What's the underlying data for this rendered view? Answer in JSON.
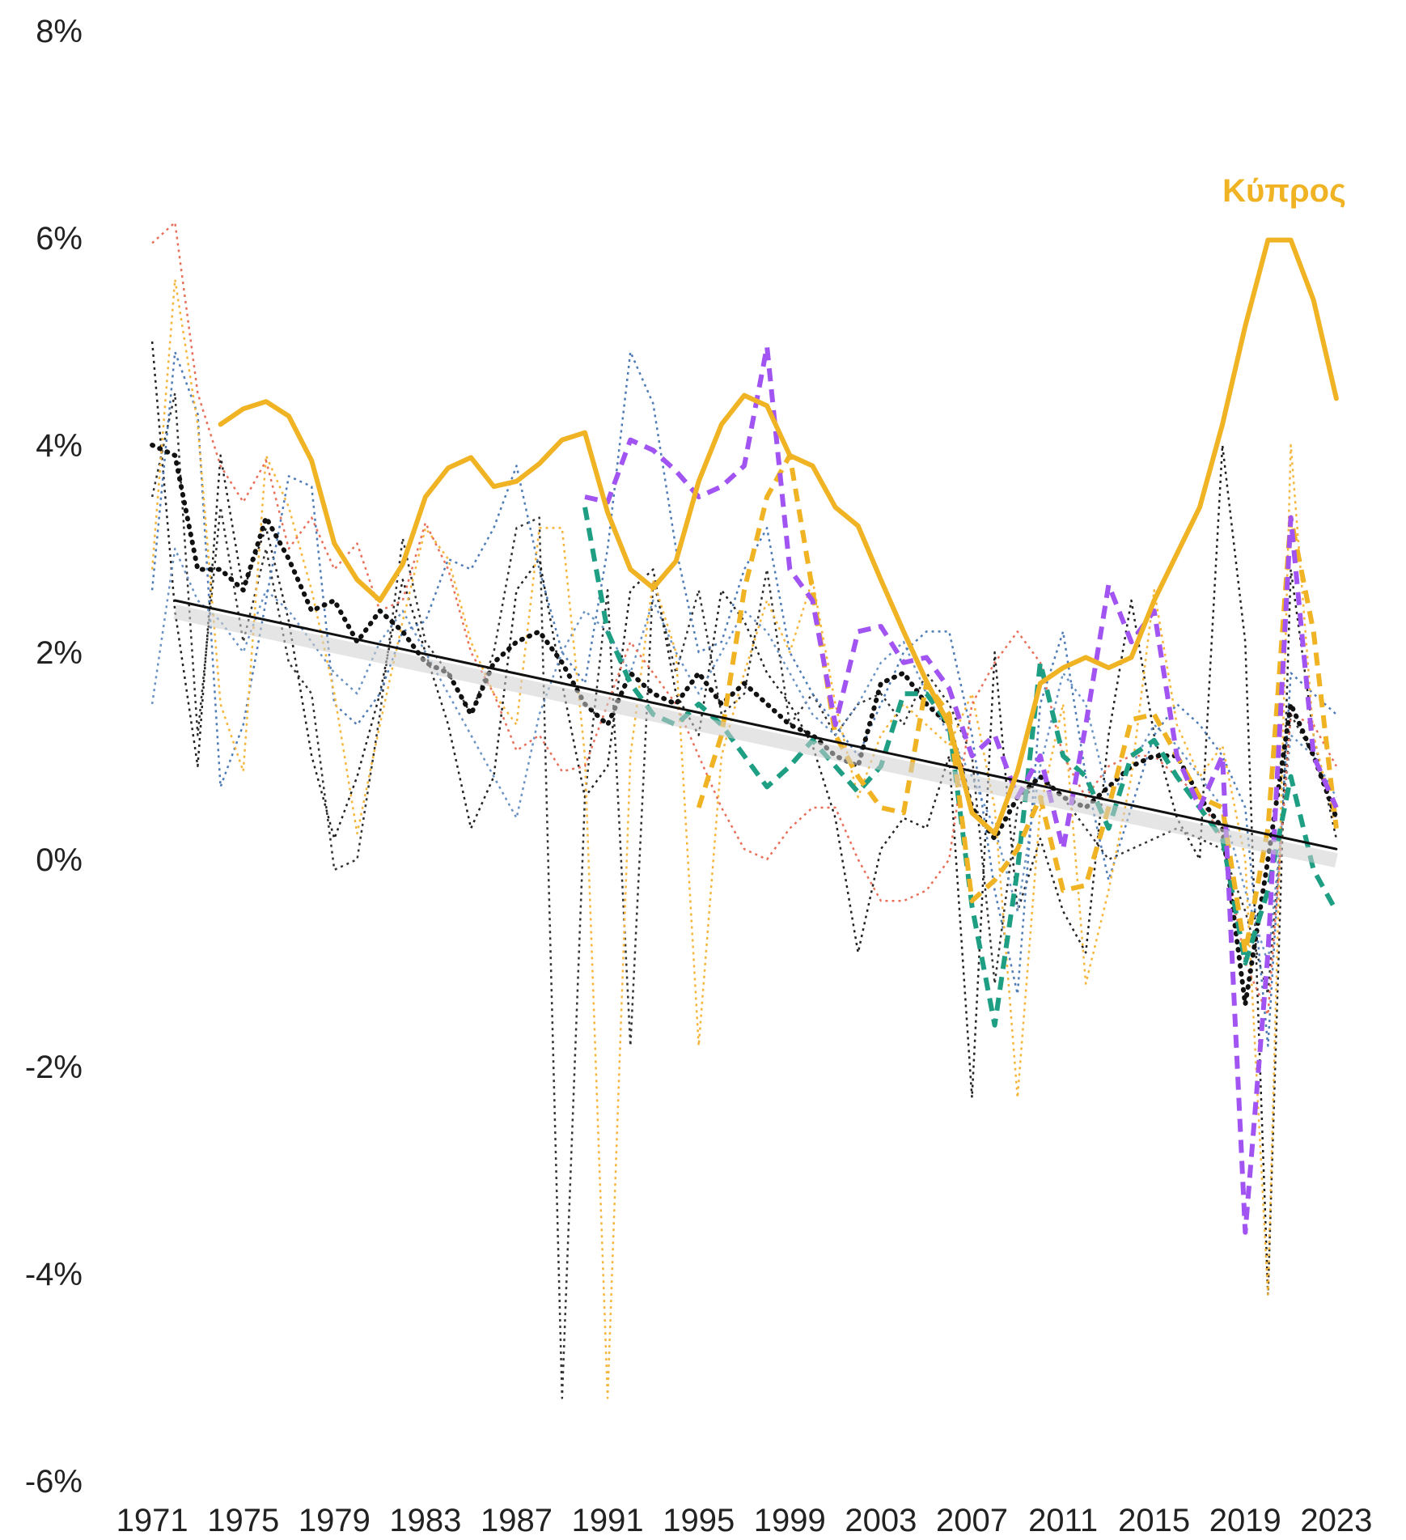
{
  "chart_data": {
    "type": "line",
    "title": "",
    "xlabel": "",
    "ylabel": "",
    "xlim": [
      1970,
      2024
    ],
    "ylim": [
      -6,
      8
    ],
    "yticks": [
      -6,
      -4,
      -2,
      0,
      2,
      4,
      6,
      8
    ],
    "yticklabels": [
      "-6%",
      "-4%",
      "-2%",
      "0%",
      "2%",
      "4%",
      "6%",
      "8%"
    ],
    "xticks": [
      1971,
      1975,
      1979,
      1983,
      1987,
      1991,
      1995,
      1999,
      2003,
      2007,
      2011,
      2015,
      2019,
      2023
    ],
    "xticklabels": [
      "1971",
      "1975",
      "1979",
      "1983",
      "1987",
      "1991",
      "1995",
      "1999",
      "2003",
      "2007",
      "2011",
      "2015",
      "2019",
      "2023"
    ],
    "grid": false,
    "legend": "none",
    "annotations": [
      {
        "text": "Κύπρος",
        "series": "Κύπρος",
        "x": 2018,
        "y": 6.35,
        "color": "#F0B323"
      }
    ],
    "series": [
      {
        "name": "Κύπρος",
        "color": "#F0B323",
        "style": "solid",
        "width": 6,
        "x": [
          1974,
          1975,
          1976,
          1977,
          1978,
          1979,
          1980,
          1981,
          1982,
          1983,
          1984,
          1985,
          1986,
          1987,
          1988,
          1989,
          1990,
          1991,
          1992,
          1993,
          1994,
          1995,
          1996,
          1997,
          1998,
          1999,
          2000,
          2001,
          2002,
          2003,
          2004,
          2005,
          2006,
          2007,
          2008,
          2009,
          2010,
          2011,
          2012,
          2013,
          2014,
          2015,
          2016,
          2017,
          2018,
          2019,
          2020,
          2021,
          2022,
          2023
        ],
        "y": [
          4.2,
          4.35,
          4.42,
          4.28,
          3.85,
          3.05,
          2.7,
          2.5,
          2.85,
          3.5,
          3.78,
          3.88,
          3.6,
          3.65,
          3.82,
          4.05,
          4.12,
          3.35,
          2.8,
          2.62,
          2.88,
          3.65,
          4.2,
          4.48,
          4.38,
          3.9,
          3.8,
          3.4,
          3.22,
          2.7,
          2.2,
          1.72,
          1.3,
          0.45,
          0.25,
          0.85,
          1.7,
          1.85,
          1.95,
          1.85,
          1.95,
          2.5,
          2.95,
          3.4,
          4.2,
          5.15,
          5.98,
          5.98,
          5.4,
          4.45
        ]
      },
      {
        "name": "",
        "color": "#A154F2",
        "style": "dashed",
        "width": 6,
        "x": [
          1990,
          1991,
          1992,
          1993,
          1994,
          1995,
          1996,
          1997,
          1998,
          1999,
          2000,
          2001,
          2002,
          2003,
          2004,
          2005,
          2006,
          2007,
          2008,
          2009,
          2010,
          2011,
          2012,
          2013,
          2014,
          2015,
          2016,
          2017,
          2018,
          2019,
          2020,
          2021,
          2022,
          2023
        ],
        "y": [
          3.5,
          3.45,
          4.05,
          3.95,
          3.75,
          3.5,
          3.6,
          3.8,
          4.95,
          2.8,
          2.5,
          1.3,
          2.2,
          2.25,
          1.9,
          1.95,
          1.65,
          1.0,
          1.2,
          0.6,
          1.0,
          0.1,
          1.3,
          2.65,
          2.1,
          2.4,
          1.0,
          0.5,
          1.0,
          -3.6,
          -0.9,
          3.3,
          1.0,
          0.5
        ]
      },
      {
        "name": "",
        "color": "#F0B323",
        "style": "dashed",
        "width": 6,
        "x": [
          1995,
          1996,
          1997,
          1998,
          1999,
          2000,
          2001,
          2002,
          2003,
          2004,
          2005,
          2006,
          2007,
          2008,
          2009,
          2010,
          2011,
          2012,
          2013,
          2014,
          2015,
          2016,
          2017,
          2018,
          2019,
          2020,
          2021,
          2022,
          2023
        ],
        "y": [
          0.5,
          1.2,
          2.6,
          3.5,
          3.9,
          2.6,
          1.2,
          0.8,
          0.5,
          0.45,
          1.7,
          1.4,
          -0.4,
          -0.2,
          0.1,
          0.6,
          -0.3,
          -0.25,
          0.5,
          1.35,
          1.4,
          1.0,
          0.6,
          0.5,
          -0.9,
          0.3,
          3.3,
          2.2,
          0.3
        ]
      },
      {
        "name": "",
        "color": "#1E9E83",
        "style": "dashed",
        "width": 6,
        "x": [
          1990,
          1991,
          1992,
          1993,
          1994,
          1995,
          1996,
          1997,
          1998,
          1999,
          2000,
          2001,
          2002,
          2003,
          2004,
          2005,
          2006,
          2007,
          2008,
          2009,
          2010,
          2011,
          2012,
          2013,
          2014,
          2015,
          2016,
          2017,
          2018,
          2019,
          2020,
          2021,
          2022,
          2023
        ],
        "y": [
          3.4,
          2.2,
          1.7,
          1.4,
          1.3,
          1.5,
          1.3,
          1.0,
          0.7,
          0.9,
          1.15,
          0.9,
          0.65,
          0.9,
          1.6,
          1.6,
          1.3,
          -0.45,
          -1.6,
          -0.1,
          1.9,
          1.0,
          0.8,
          0.3,
          1.0,
          1.15,
          0.8,
          0.5,
          0.2,
          -1.0,
          -0.3,
          0.8,
          -0.1,
          -0.5
        ]
      },
      {
        "name": "",
        "color": "#E8705A",
        "style": "dotted",
        "width": 2.5,
        "x": [
          1971,
          1972,
          1973,
          1974,
          1975,
          1976,
          1977,
          1978,
          1979,
          1980,
          1981,
          1982,
          1983,
          1984,
          1985,
          1986,
          1987,
          1988,
          1989,
          1990,
          1991,
          1992,
          1993,
          1994,
          1995,
          1996,
          1997,
          1998,
          1999,
          2000,
          2001,
          2002,
          2003,
          2004,
          2005,
          2006,
          2007,
          2008,
          2009,
          2010,
          2011,
          2012,
          2013,
          2014,
          2015,
          2016,
          2017,
          2018,
          2019,
          2020,
          2021,
          2022,
          2023
        ],
        "y": [
          5.95,
          6.15,
          4.5,
          3.8,
          3.45,
          3.85,
          3.0,
          3.3,
          2.8,
          3.05,
          2.4,
          2.5,
          3.25,
          2.8,
          2.0,
          1.6,
          1.05,
          1.2,
          0.85,
          0.9,
          1.5,
          2.1,
          1.8,
          1.5,
          1.0,
          0.5,
          0.1,
          0.0,
          0.3,
          0.5,
          0.5,
          0.0,
          -0.4,
          -0.4,
          -0.3,
          0.0,
          1.5,
          1.9,
          2.2,
          1.9,
          1.0,
          0.6,
          0.9,
          1.0,
          1.0,
          0.8,
          0.6,
          0.2,
          -1.0,
          -1.5,
          1.4,
          1.3,
          0.9
        ]
      },
      {
        "name": "",
        "color": "#F5B63B",
        "style": "dotted",
        "width": 2.5,
        "x": [
          1971,
          1972,
          1973,
          1974,
          1975,
          1976,
          1977,
          1978,
          1979,
          1980,
          1981,
          1982,
          1983,
          1984,
          1985,
          1986,
          1987,
          1988,
          1989,
          1990,
          1991,
          1992,
          1993,
          1994,
          1995,
          1996,
          1997,
          1998,
          1999,
          2000,
          2001,
          2002,
          2003,
          2004,
          2005,
          2006,
          2007,
          2008,
          2009,
          2010,
          2011,
          2012,
          2013,
          2014,
          2015,
          2016,
          2017,
          2018,
          2019,
          2020,
          2021,
          2022,
          2023
        ],
        "y": [
          2.8,
          5.6,
          4.2,
          1.5,
          0.85,
          3.9,
          3.4,
          2.6,
          1.6,
          0.25,
          1.3,
          2.3,
          3.2,
          2.9,
          2.1,
          1.6,
          1.3,
          3.2,
          3.2,
          1.0,
          -5.2,
          1.0,
          2.7,
          2.0,
          -1.8,
          1.0,
          1.8,
          2.5,
          2.0,
          2.7,
          1.5,
          0.6,
          1.2,
          1.5,
          1.3,
          1.1,
          1.6,
          0.5,
          -2.3,
          0.5,
          1.5,
          -1.2,
          -0.3,
          0.8,
          2.6,
          1.3,
          0.8,
          1.1,
          0.0,
          -4.2,
          4.0,
          1.2,
          0.3
        ]
      },
      {
        "name": "",
        "color": "#4F7CB6",
        "style": "dotted",
        "width": 2.5,
        "x": [
          1971,
          1972,
          1973,
          1974,
          1975,
          1976,
          1977,
          1978,
          1979,
          1980,
          1981,
          1982,
          1983,
          1984,
          1985,
          1986,
          1987,
          1988,
          1989,
          1990,
          1991,
          1992,
          1993,
          1994,
          1995,
          1996,
          1997,
          1998,
          1999,
          2000,
          2001,
          2002,
          2003,
          2004,
          2005,
          2006,
          2007,
          2008,
          2009,
          2010,
          2011,
          2012,
          2013,
          2014,
          2015,
          2016,
          2017,
          2018,
          2019,
          2020,
          2021,
          2022,
          2023
        ],
        "y": [
          2.6,
          4.9,
          4.3,
          0.7,
          1.3,
          2.5,
          3.7,
          3.6,
          1.5,
          1.3,
          1.6,
          2.2,
          2.3,
          2.9,
          2.8,
          3.2,
          3.8,
          2.8,
          2.0,
          1.7,
          3.0,
          4.9,
          4.4,
          3.0,
          2.0,
          2.1,
          2.8,
          3.2,
          2.0,
          1.6,
          1.3,
          1.0,
          1.5,
          2.0,
          2.2,
          2.2,
          1.2,
          -0.3,
          -1.3,
          1.5,
          2.2,
          0.8,
          -0.2,
          0.5,
          1.2,
          1.5,
          1.3,
          1.0,
          0.5,
          -1.8,
          1.8,
          1.6,
          1.4
        ]
      },
      {
        "name": "",
        "color": "#6A93C4",
        "style": "dotted",
        "width": 2.5,
        "x": [
          1971,
          1972,
          1973,
          1974,
          1975,
          1976,
          1977,
          1978,
          1979,
          1980,
          1981,
          1982,
          1983,
          1984,
          1985,
          1986,
          1987,
          1988,
          1989,
          1990,
          1991,
          1992,
          1993,
          1994,
          1995,
          1996,
          1997,
          1998,
          1999,
          2000,
          2001,
          2002,
          2003,
          2004,
          2005,
          2006,
          2007,
          2008,
          2009,
          2010,
          2011,
          2012,
          2013,
          2014,
          2015,
          2016,
          2017,
          2018,
          2019,
          2020,
          2021,
          2022,
          2023
        ],
        "y": [
          1.5,
          3.0,
          2.5,
          2.3,
          2.0,
          2.6,
          2.4,
          2.1,
          1.8,
          1.6,
          2.1,
          2.4,
          2.0,
          1.6,
          1.2,
          0.8,
          0.4,
          1.4,
          2.0,
          2.4,
          2.2,
          1.8,
          2.5,
          2.0,
          1.6,
          2.0,
          2.4,
          2.2,
          1.8,
          1.4,
          1.2,
          1.5,
          1.9,
          2.1,
          1.6,
          1.2,
          0.8,
          0.3,
          -0.5,
          0.9,
          1.8,
          1.5,
          0.6,
          0.9,
          1.3,
          1.1,
          0.8,
          0.5,
          -0.3,
          -1.0,
          1.2,
          1.0,
          0.6
        ]
      },
      {
        "name": "",
        "color": "#222222",
        "style": "dotted",
        "width": 2.5,
        "x": [
          1971,
          1972,
          1973,
          1974,
          1975,
          1976,
          1977,
          1978,
          1979,
          1980,
          1981,
          1982,
          1983,
          1984,
          1985,
          1986,
          1987,
          1988,
          1989,
          1990,
          1991,
          1992,
          1993,
          1994,
          1995,
          1996,
          1997,
          1998,
          1999,
          2000,
          2001,
          2002,
          2003,
          2004,
          2005,
          2006,
          2007,
          2008,
          2009,
          2010,
          2011,
          2012,
          2013,
          2014,
          2015,
          2016,
          2017,
          2018,
          2019,
          2020,
          2021,
          2022,
          2023
        ],
        "y": [
          5.0,
          2.4,
          0.9,
          3.9,
          2.6,
          3.2,
          2.3,
          1.0,
          0.2,
          0.8,
          1.6,
          2.7,
          2.0,
          1.3,
          0.3,
          0.8,
          2.6,
          2.9,
          1.7,
          0.6,
          0.9,
          2.6,
          2.8,
          1.6,
          1.2,
          2.6,
          2.3,
          1.8,
          1.5,
          1.1,
          0.4,
          -0.9,
          0.1,
          0.4,
          0.3,
          1.0,
          -2.3,
          2.0,
          -0.5,
          0.2,
          -0.5,
          -0.9,
          1.2,
          2.5,
          1.2,
          0.4,
          0.0,
          4.0,
          2.1,
          -4.2,
          2.8,
          1.2,
          0.2
        ]
      },
      {
        "name": "",
        "color": "#333333",
        "style": "dotted",
        "width": 2.5,
        "x": [
          1971,
          1972,
          1973,
          1974,
          1975,
          1976,
          1977,
          1978,
          1979,
          1980,
          1981,
          1982,
          1983,
          1984,
          1985,
          1986,
          1987,
          1988,
          1989,
          1990,
          1991,
          1992,
          1993,
          1994,
          1995,
          1996,
          1997,
          1998,
          1999,
          2000,
          2001,
          2002,
          2003,
          2004,
          2005,
          2006,
          2007,
          2008,
          2009,
          2010,
          2011,
          2012,
          2013,
          2014,
          2015,
          2016,
          2017,
          2018,
          2019,
          2020,
          2021,
          2022,
          2023
        ],
        "y": [
          3.5,
          4.5,
          1.2,
          3.4,
          2.1,
          3.0,
          1.9,
          1.6,
          -0.1,
          0.0,
          1.4,
          3.1,
          2.1,
          1.8,
          1.4,
          2.0,
          3.2,
          3.3,
          -5.2,
          0.6,
          2.6,
          -1.8,
          2.7,
          1.8,
          2.6,
          1.4,
          1.6,
          2.8,
          1.3,
          1.6,
          1.2,
          1.5,
          1.6,
          1.3,
          1.8,
          1.5,
          1.0,
          -1.2,
          0.5,
          0.8,
          0.6,
          0.3,
          0.0,
          0.1,
          0.2,
          0.3,
          0.2,
          0.1,
          -0.5,
          -1.3,
          1.4,
          1.0,
          0.4
        ]
      },
      {
        "name": "",
        "color": "#111111",
        "style": "dotted-thick",
        "width": 5,
        "x": [
          1971,
          1972,
          1973,
          1974,
          1975,
          1976,
          1977,
          1978,
          1979,
          1980,
          1981,
          1982,
          1983,
          1984,
          1985,
          1986,
          1987,
          1988,
          1989,
          1990,
          1991,
          1992,
          1993,
          1994,
          1995,
          1996,
          1997,
          1998,
          1999,
          2000,
          2001,
          2002,
          2003,
          2004,
          2005,
          2006,
          2007,
          2008,
          2009,
          2010,
          2011,
          2012,
          2013,
          2014,
          2015,
          2016,
          2017,
          2018,
          2019,
          2020,
          2021,
          2022,
          2023
        ],
        "y": [
          4.0,
          3.9,
          2.8,
          2.8,
          2.6,
          3.3,
          2.9,
          2.4,
          2.5,
          2.1,
          2.4,
          2.2,
          1.9,
          1.8,
          1.4,
          1.9,
          2.1,
          2.2,
          1.9,
          1.5,
          1.3,
          1.8,
          1.6,
          1.5,
          1.8,
          1.5,
          1.7,
          1.5,
          1.3,
          1.2,
          1.0,
          0.9,
          1.7,
          1.8,
          1.5,
          1.3,
          0.5,
          0.2,
          0.6,
          0.8,
          0.6,
          0.5,
          0.7,
          0.9,
          1.0,
          1.0,
          0.6,
          0.3,
          -1.4,
          0.0,
          1.5,
          1.0,
          0.4
        ]
      },
      {
        "name": "",
        "color": "#111111",
        "style": "solid",
        "width": 3,
        "x": [
          1972,
          2023
        ],
        "y": [
          2.5,
          0.1
        ]
      }
    ]
  }
}
